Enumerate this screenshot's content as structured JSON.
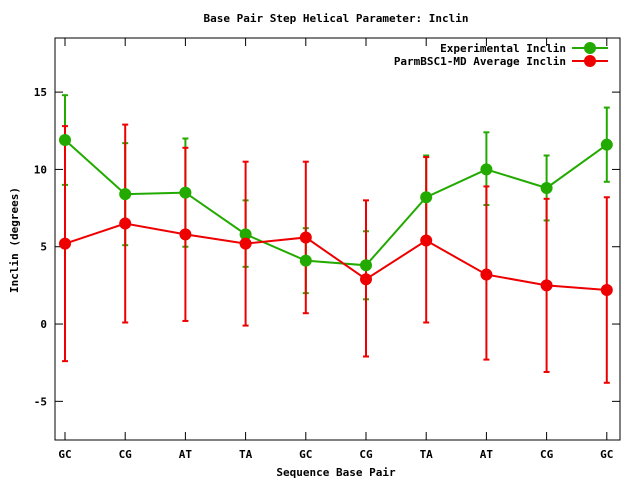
{
  "chart_data": {
    "type": "line",
    "title": "Base Pair Step Helical Parameter: Inclin",
    "xlabel": "Sequence Base Pair",
    "ylabel": "Inclin (degrees)",
    "categories": [
      "GC",
      "CG",
      "AT",
      "TA",
      "GC",
      "CG",
      "TA",
      "AT",
      "CG",
      "GC"
    ],
    "ylim": [
      -7.5,
      18.5
    ],
    "yticks": [
      -5,
      0,
      5,
      10,
      15
    ],
    "ytick_labels": [
      "-5",
      "0",
      "5",
      "10",
      "15"
    ],
    "grid": false,
    "legend_position": "top-right",
    "series": [
      {
        "name": "Experimental Inclin",
        "color": "#22aa00",
        "values": [
          11.9,
          8.4,
          8.5,
          5.8,
          4.1,
          3.8,
          8.2,
          10.0,
          8.8,
          11.6
        ],
        "err_low": [
          9.0,
          5.1,
          5.0,
          3.7,
          2.0,
          1.6,
          5.5,
          7.7,
          6.7,
          9.2
        ],
        "err_high": [
          14.8,
          11.7,
          12.0,
          8.0,
          6.2,
          6.0,
          10.9,
          12.4,
          10.9,
          14.0
        ]
      },
      {
        "name": "ParmBSC1-MD Average Inclin",
        "color": "#ee0000",
        "values": [
          5.2,
          6.5,
          5.8,
          5.2,
          5.6,
          2.9,
          5.4,
          3.2,
          2.5,
          2.2
        ],
        "err_low": [
          -2.4,
          0.1,
          0.2,
          -0.1,
          0.7,
          -2.1,
          0.1,
          -2.3,
          -3.1,
          -3.8
        ],
        "err_high": [
          12.8,
          12.9,
          11.4,
          10.5,
          10.5,
          8.0,
          10.8,
          8.9,
          8.1,
          8.2
        ]
      }
    ]
  }
}
